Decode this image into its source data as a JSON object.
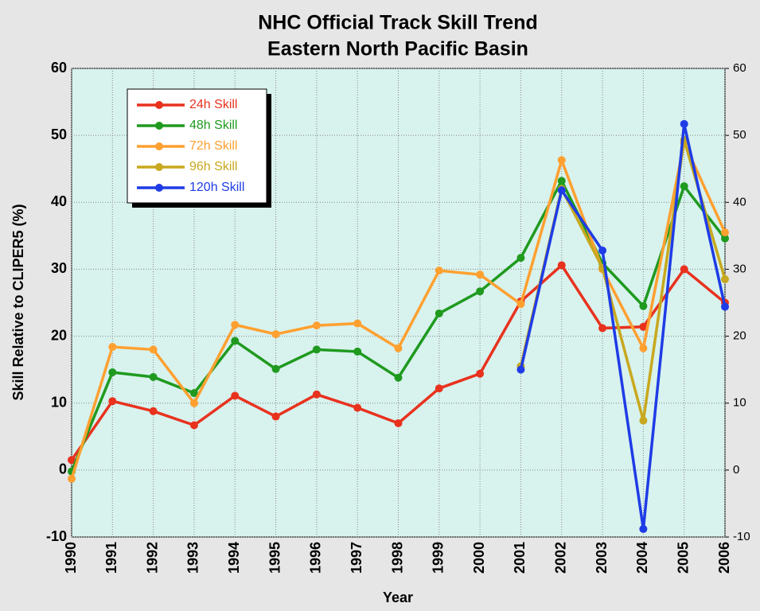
{
  "chart_data": {
    "type": "line",
    "title": "NHC Official Track Skill Trend",
    "subtitle": "Eastern North Pacific Basin",
    "xlabel": "Year",
    "ylabel": "Skill Relative to CLIPER5 (%)",
    "categories": [
      "1990",
      "1991",
      "1992",
      "1993",
      "1994",
      "1995",
      "1996",
      "1997",
      "1998",
      "1999",
      "2000",
      "2001",
      "2002",
      "2003",
      "2004",
      "2005",
      "2006"
    ],
    "series": [
      {
        "name": "24h Skill",
        "color": "#e8321e",
        "values": [
          1.5,
          10.3,
          8.8,
          6.7,
          11.1,
          8.0,
          11.3,
          9.3,
          7.0,
          12.2,
          14.4,
          25.2,
          30.6,
          21.2,
          21.4,
          30.0,
          25.0
        ]
      },
      {
        "name": "48h Skill",
        "color": "#1f9a1f",
        "values": [
          -0.2,
          14.6,
          13.9,
          11.5,
          19.3,
          15.1,
          18.0,
          17.7,
          13.8,
          23.4,
          26.7,
          31.7,
          43.2,
          30.9,
          24.5,
          42.4,
          34.6
        ]
      },
      {
        "name": "72h Skill",
        "color": "#ffa030",
        "values": [
          -1.3,
          18.4,
          18.0,
          10.0,
          21.7,
          20.3,
          21.6,
          21.9,
          18.2,
          29.8,
          29.2,
          24.8,
          46.3,
          30.0,
          18.2,
          48.9,
          35.5
        ]
      },
      {
        "name": "96h Skill",
        "color": "#c8a81e",
        "values": [
          null,
          null,
          null,
          null,
          null,
          null,
          null,
          null,
          null,
          null,
          null,
          15.5,
          42.0,
          30.2,
          7.4,
          49.3,
          28.5
        ]
      },
      {
        "name": "120h Skill",
        "color": "#1e3ce6",
        "values": [
          null,
          null,
          null,
          null,
          null,
          null,
          null,
          null,
          null,
          null,
          null,
          15.0,
          41.8,
          32.8,
          -8.8,
          51.7,
          24.4
        ]
      }
    ],
    "ylim": [
      -10,
      60
    ],
    "yticks": [
      -10,
      0,
      10,
      20,
      30,
      40,
      50,
      60
    ],
    "y2lim": [
      -10,
      60
    ],
    "y2ticks": [
      -10,
      0,
      10,
      20,
      30,
      40,
      50,
      60
    ],
    "grid": true,
    "legend": "upper left"
  }
}
